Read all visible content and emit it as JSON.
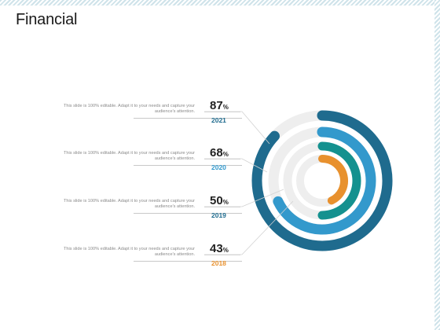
{
  "page": {
    "title": "Financial"
  },
  "chart_data": {
    "type": "radial-bar",
    "max": 100,
    "track_color": "#eeeeee",
    "series": [
      {
        "year": "2021",
        "value": 87,
        "color": "#1f6b8e",
        "year_color": "#1f6b8e"
      },
      {
        "year": "2020",
        "value": 68,
        "color": "#3399cc",
        "year_color": "#3399cc"
      },
      {
        "year": "2019",
        "value": 50,
        "color": "#14918f",
        "year_color": "#1f6b8e"
      },
      {
        "year": "2018",
        "value": 43,
        "color": "#e8912e",
        "year_color": "#e8912e"
      }
    ],
    "unit": "%",
    "description": "This slide is 100% editable. Adapt it to your needs and capture your audience's attention."
  }
}
